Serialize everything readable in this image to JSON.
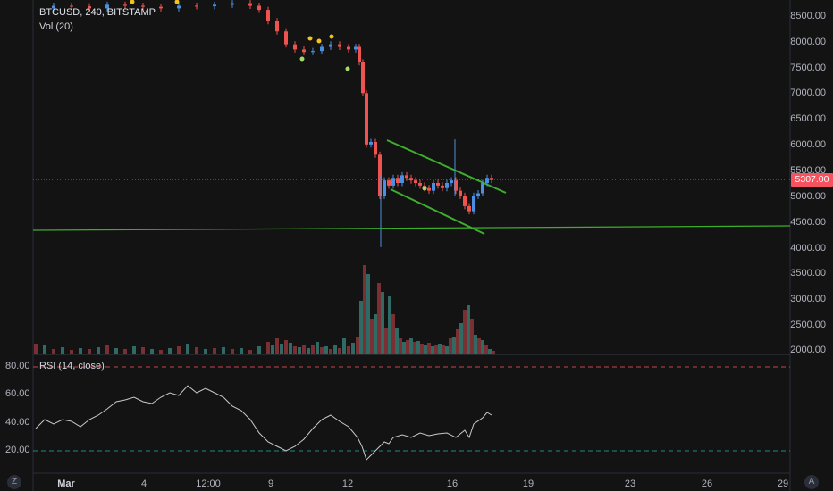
{
  "legend": {
    "symbol": "BTCUSD, 240, BITSTAMP",
    "volume_label": "Vol (20)"
  },
  "rsi_legend": "RSI (14, close)",
  "price_axis": [
    "8500.00",
    "8000.00",
    "7500.00",
    "7000.00",
    "6500.00",
    "6000.00",
    "5500.00",
    "5000.00",
    "4500.00",
    "4000.00",
    "3500.00",
    "3000.00",
    "2500.00",
    "2000.00"
  ],
  "current_price": "5307.00",
  "rsi_axis": [
    "80.00",
    "60.00",
    "40.00",
    "20.00"
  ],
  "time_axis": [
    {
      "label": "Mar",
      "bold": true
    },
    {
      "label": "4",
      "bold": false
    },
    {
      "label": "12:00",
      "bold": false
    },
    {
      "label": "9",
      "bold": false
    },
    {
      "label": "12",
      "bold": false
    },
    {
      "label": "16",
      "bold": false
    },
    {
      "label": "19",
      "bold": false
    },
    {
      "label": "23",
      "bold": false
    },
    {
      "label": "26",
      "bold": false
    },
    {
      "label": "29",
      "bold": false
    }
  ],
  "buttons": {
    "zoom_left": "Z",
    "auto_right": "A"
  },
  "colors": {
    "up": "#26a69a",
    "up_candle": "#4a90e2",
    "down": "#ef5350",
    "grid": "#1e222d",
    "trend": "#3dae2b",
    "rsi": "#b2b5be"
  },
  "chart_data": {
    "type": "candlestick",
    "title": "BTCUSD, 240, BITSTAMP",
    "price_range": [
      1950,
      8750
    ],
    "current_price": 5307,
    "support_line": 4450,
    "rsi_levels": [
      80,
      20
    ]
  }
}
